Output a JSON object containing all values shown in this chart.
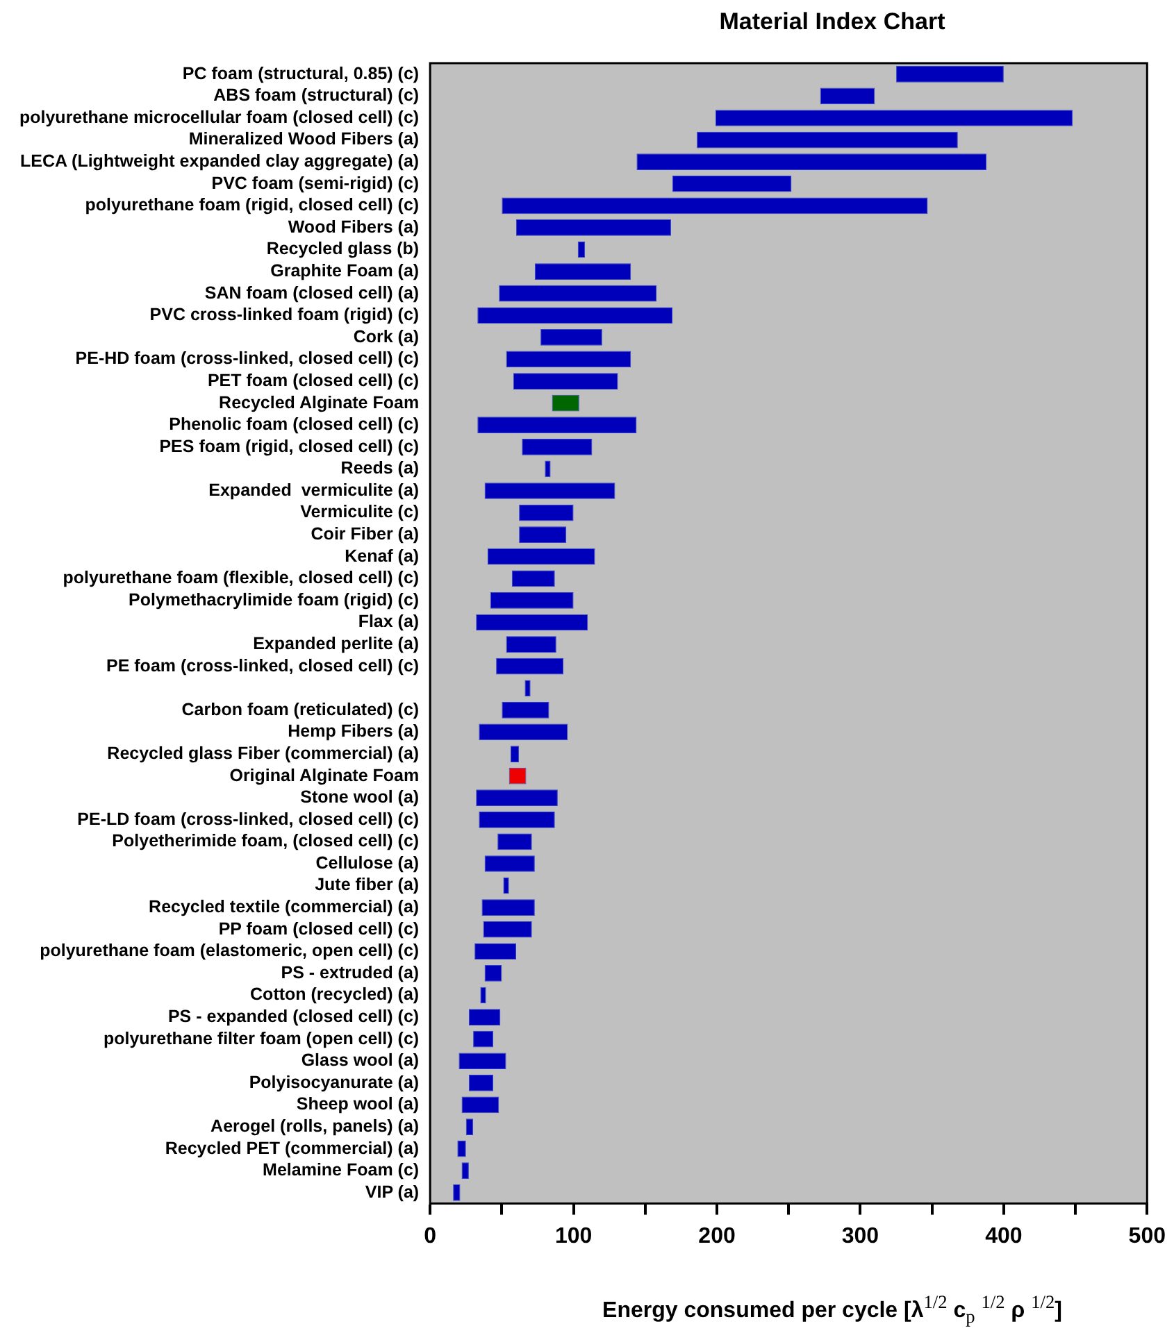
{
  "chart_data": {
    "type": "bar",
    "orientation": "horizontal",
    "title": "Material Index Chart",
    "xlabel": "Energy consumed per cycle [λ$^{1/2}$ c$_{p}$ $^{1/2}$ ρ $^{1/2}$]",
    "categories": [
      "PC foam (structural, 0.85) (c)",
      "ABS foam (structural) (c)",
      "polyurethane microcellular foam (closed cell) (c)",
      "Mineralized Wood Fibers (a)",
      "LECA (Lightweight expanded clay aggregate) (a)",
      "PVC foam (semi-rigid) (c)",
      "polyurethane foam (rigid, closed cell) (c)",
      "Wood Fibers (a)",
      "Recycled glass (b)",
      "Graphite Foam (a)",
      "SAN foam (closed cell) (a)",
      "PVC cross-linked foam (rigid) (c)",
      "Cork (a)",
      "PE-HD foam (cross-linked, closed cell) (c)",
      "PET foam (closed cell) (c)",
      "Recycled Alginate Foam",
      "Phenolic foam (closed cell) (c)",
      "PES foam (rigid, closed cell) (c)",
      "Reeds (a)",
      "Expanded  vermiculite (a)",
      "Vermiculite (c)",
      "Coir Fiber (a)",
      "Kenaf (a)",
      "polyurethane foam (flexible, closed cell) (c)",
      "Polymethacrylimide foam (rigid) (c)",
      "Flax (a)",
      "Expanded perlite (a)",
      "PE foam (cross-linked, closed cell) (c)",
      null,
      "Carbon foam (reticulated) (c)",
      "Hemp Fibers (a)",
      "Recycled glass Fiber (commercial) (a)",
      "Original Alginate Foam",
      "Stone wool (a)",
      "PE-LD foam (cross-linked, closed cell) (c)",
      "Polyetherimide foam, (closed cell) (c)",
      "Cellulose (a)",
      "Jute fiber (a)",
      "Recycled textile (commercial) (a)",
      "PP foam (closed cell) (c)",
      "polyurethane foam (elastomeric, open cell) (c)",
      "PS - extruded (a)",
      "Cotton (recycled) (a)",
      "PS - expanded (closed cell) (c)",
      "polyurethane filter foam (open cell) (c)",
      "Glass wool (a)",
      "Polyisocyanurate (a)",
      "Sheep wool (a)",
      "Aerogel (rolls, panels) (a)",
      "Recycled PET (commercial) (a)",
      "Melamine Foam (c)",
      "VIP (a)"
    ],
    "base": [
      325,
      272,
      199,
      186,
      144,
      169,
      50,
      60,
      103,
      73,
      48,
      33,
      77,
      53,
      58,
      85,
      33,
      64,
      80,
      38,
      62,
      62,
      40,
      57,
      42,
      32,
      53,
      46,
      66,
      50,
      34,
      56,
      55,
      32,
      34,
      47,
      38,
      51,
      36,
      37,
      31,
      38,
      35,
      27,
      30,
      20,
      27,
      22,
      25,
      19,
      22,
      16
    ],
    "values": [
      75,
      38,
      249,
      182,
      244,
      83,
      297,
      108,
      5,
      67,
      110,
      136,
      43,
      87,
      73,
      19,
      111,
      49,
      4,
      91,
      38,
      33,
      75,
      30,
      58,
      78,
      35,
      47,
      4,
      33,
      62,
      6,
      12,
      57,
      53,
      24,
      35,
      4,
      37,
      34,
      29,
      12,
      4,
      22,
      14,
      33,
      17,
      26,
      5,
      6,
      5,
      5
    ],
    "colors": [
      "#0000bb",
      "#0000bb",
      "#0000bb",
      "#0000bb",
      "#0000bb",
      "#0000bb",
      "#0000bb",
      "#0000bb",
      "#0000bb",
      "#0000bb",
      "#0000bb",
      "#0000bb",
      "#0000bb",
      "#0000bb",
      "#0000bb",
      "#006600",
      "#0000bb",
      "#0000bb",
      "#0000bb",
      "#0000bb",
      "#0000bb",
      "#0000bb",
      "#0000bb",
      "#0000bb",
      "#0000bb",
      "#0000bb",
      "#0000bb",
      "#0000bb",
      "#0000bb",
      "#0000bb",
      "#0000bb",
      "#0000bb",
      "#ee0000",
      "#0000bb",
      "#0000bb",
      "#0000bb",
      "#0000bb",
      "#0000bb",
      "#0000bb",
      "#0000bb",
      "#0000bb",
      "#0000bb",
      "#0000bb",
      "#0000bb",
      "#0000bb",
      "#0000bb",
      "#0000bb",
      "#0000bb",
      "#0000bb",
      "#0000bb",
      "#0000bb",
      "#0000bb"
    ],
    "xlim": [
      0,
      500
    ],
    "xticks": [
      0,
      {
        "value": 50,
        "label": null
      },
      100,
      {
        "value": 150,
        "label": null
      },
      200,
      {
        "value": 250,
        "label": null
      },
      300,
      {
        "value": 350,
        "label": null
      },
      400,
      {
        "value": 450,
        "label": null
      },
      500
    ],
    "grid": false,
    "legend": false
  }
}
